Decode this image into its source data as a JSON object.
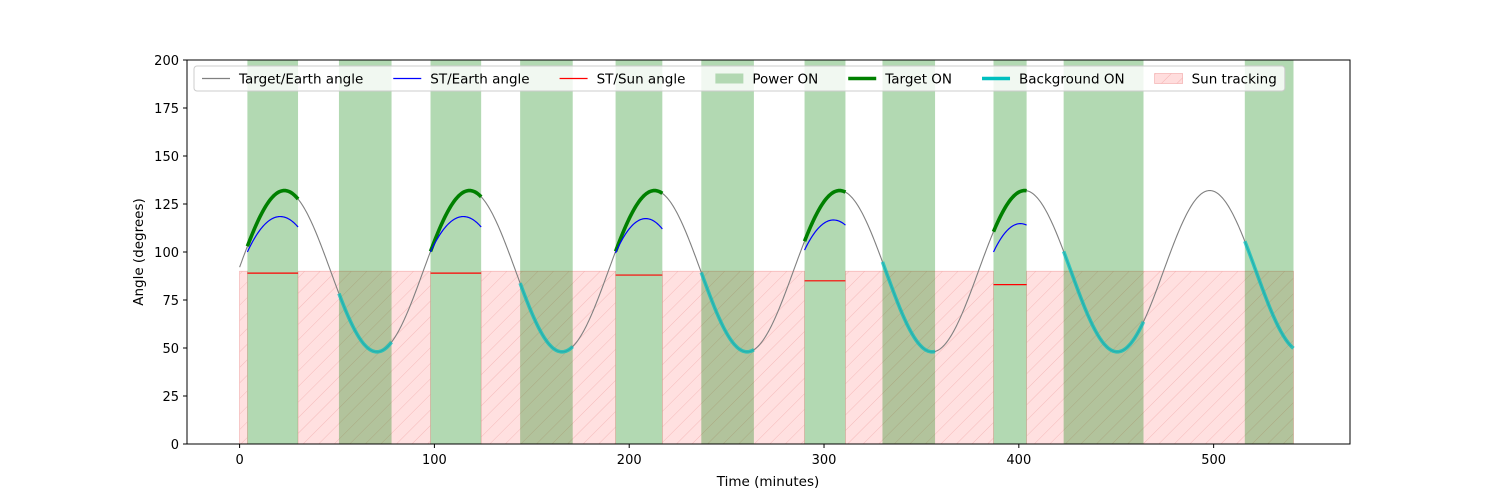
{
  "chart_data": {
    "type": "line",
    "title": "",
    "xlabel": "Time (minutes)",
    "ylabel": "Angle (degrees)",
    "xlim": [
      -27,
      570
    ],
    "ylim": [
      0,
      200
    ],
    "x_ticks": [
      0,
      100,
      200,
      300,
      400,
      500
    ],
    "y_ticks": [
      0,
      25,
      50,
      75,
      100,
      125,
      150,
      175,
      200
    ],
    "grid": false,
    "legend_position": "top",
    "legend": [
      {
        "key": "target_earth",
        "label": "Target/Earth angle",
        "kind": "line",
        "color": "#808080"
      },
      {
        "key": "st_earth",
        "label": "ST/Earth angle",
        "kind": "line",
        "color": "#0000ff"
      },
      {
        "key": "st_sun",
        "label": "ST/Sun angle",
        "kind": "line",
        "color": "#ff0000"
      },
      {
        "key": "power_on",
        "label": "Power ON",
        "kind": "patch",
        "color": "#b2d8b2"
      },
      {
        "key": "target_on",
        "label": "Target ON",
        "kind": "thickline",
        "color": "#008000"
      },
      {
        "key": "background_on",
        "label": "Background ON",
        "kind": "thickline",
        "color": "#00bfbf"
      },
      {
        "key": "sun_tracking",
        "label": "Sun tracking",
        "kind": "hatch",
        "color": "#ffdddd"
      }
    ],
    "target_earth_curve": {
      "x_start": 0,
      "x_end": 540,
      "center": 90,
      "amplitude": 42,
      "period": 95,
      "peak_at": 23
    },
    "power_on_intervals": [
      [
        4,
        30
      ],
      [
        51,
        78
      ],
      [
        98,
        124
      ],
      [
        144,
        171
      ],
      [
        193,
        217
      ],
      [
        237,
        264
      ],
      [
        290,
        311
      ],
      [
        330,
        357
      ],
      [
        387,
        404
      ],
      [
        423,
        464
      ],
      [
        516,
        541
      ]
    ],
    "sun_tracking": {
      "y_top": 90,
      "intervals": [
        [
          0,
          4
        ],
        [
          30,
          98
        ],
        [
          124,
          193
        ],
        [
          217,
          290
        ],
        [
          311,
          387
        ],
        [
          404,
          541
        ]
      ]
    },
    "target_on_segments": [
      [
        4,
        30
      ],
      [
        98,
        124
      ],
      [
        193,
        217
      ],
      [
        290,
        311
      ],
      [
        387,
        404
      ]
    ],
    "background_on_segments": [
      [
        51,
        78
      ],
      [
        144,
        171
      ],
      [
        237,
        264
      ],
      [
        330,
        357
      ],
      [
        423,
        464
      ],
      [
        516,
        541
      ]
    ],
    "st_earth_segments": [
      {
        "x": [
          4,
          17,
          30
        ],
        "y": [
          100,
          117.5,
          113
        ]
      },
      {
        "x": [
          98,
          111,
          124
        ],
        "y": [
          100,
          117.5,
          113
        ]
      },
      {
        "x": [
          193,
          205,
          217
        ],
        "y": [
          99.5,
          116.5,
          112
        ]
      },
      {
        "x": [
          290,
          300,
          311
        ],
        "y": [
          101,
          115,
          114
        ]
      },
      {
        "x": [
          387,
          396,
          404
        ],
        "y": [
          100,
          113,
          114
        ]
      }
    ],
    "st_sun_segments": [
      {
        "x": [
          4,
          30
        ],
        "y": [
          89,
          89
        ]
      },
      {
        "x": [
          98,
          124
        ],
        "y": [
          89,
          89
        ]
      },
      {
        "x": [
          193,
          217
        ],
        "y": [
          88,
          88
        ]
      },
      {
        "x": [
          290,
          311
        ],
        "y": [
          85,
          85
        ]
      },
      {
        "x": [
          387,
          404
        ],
        "y": [
          83,
          83
        ]
      }
    ]
  }
}
